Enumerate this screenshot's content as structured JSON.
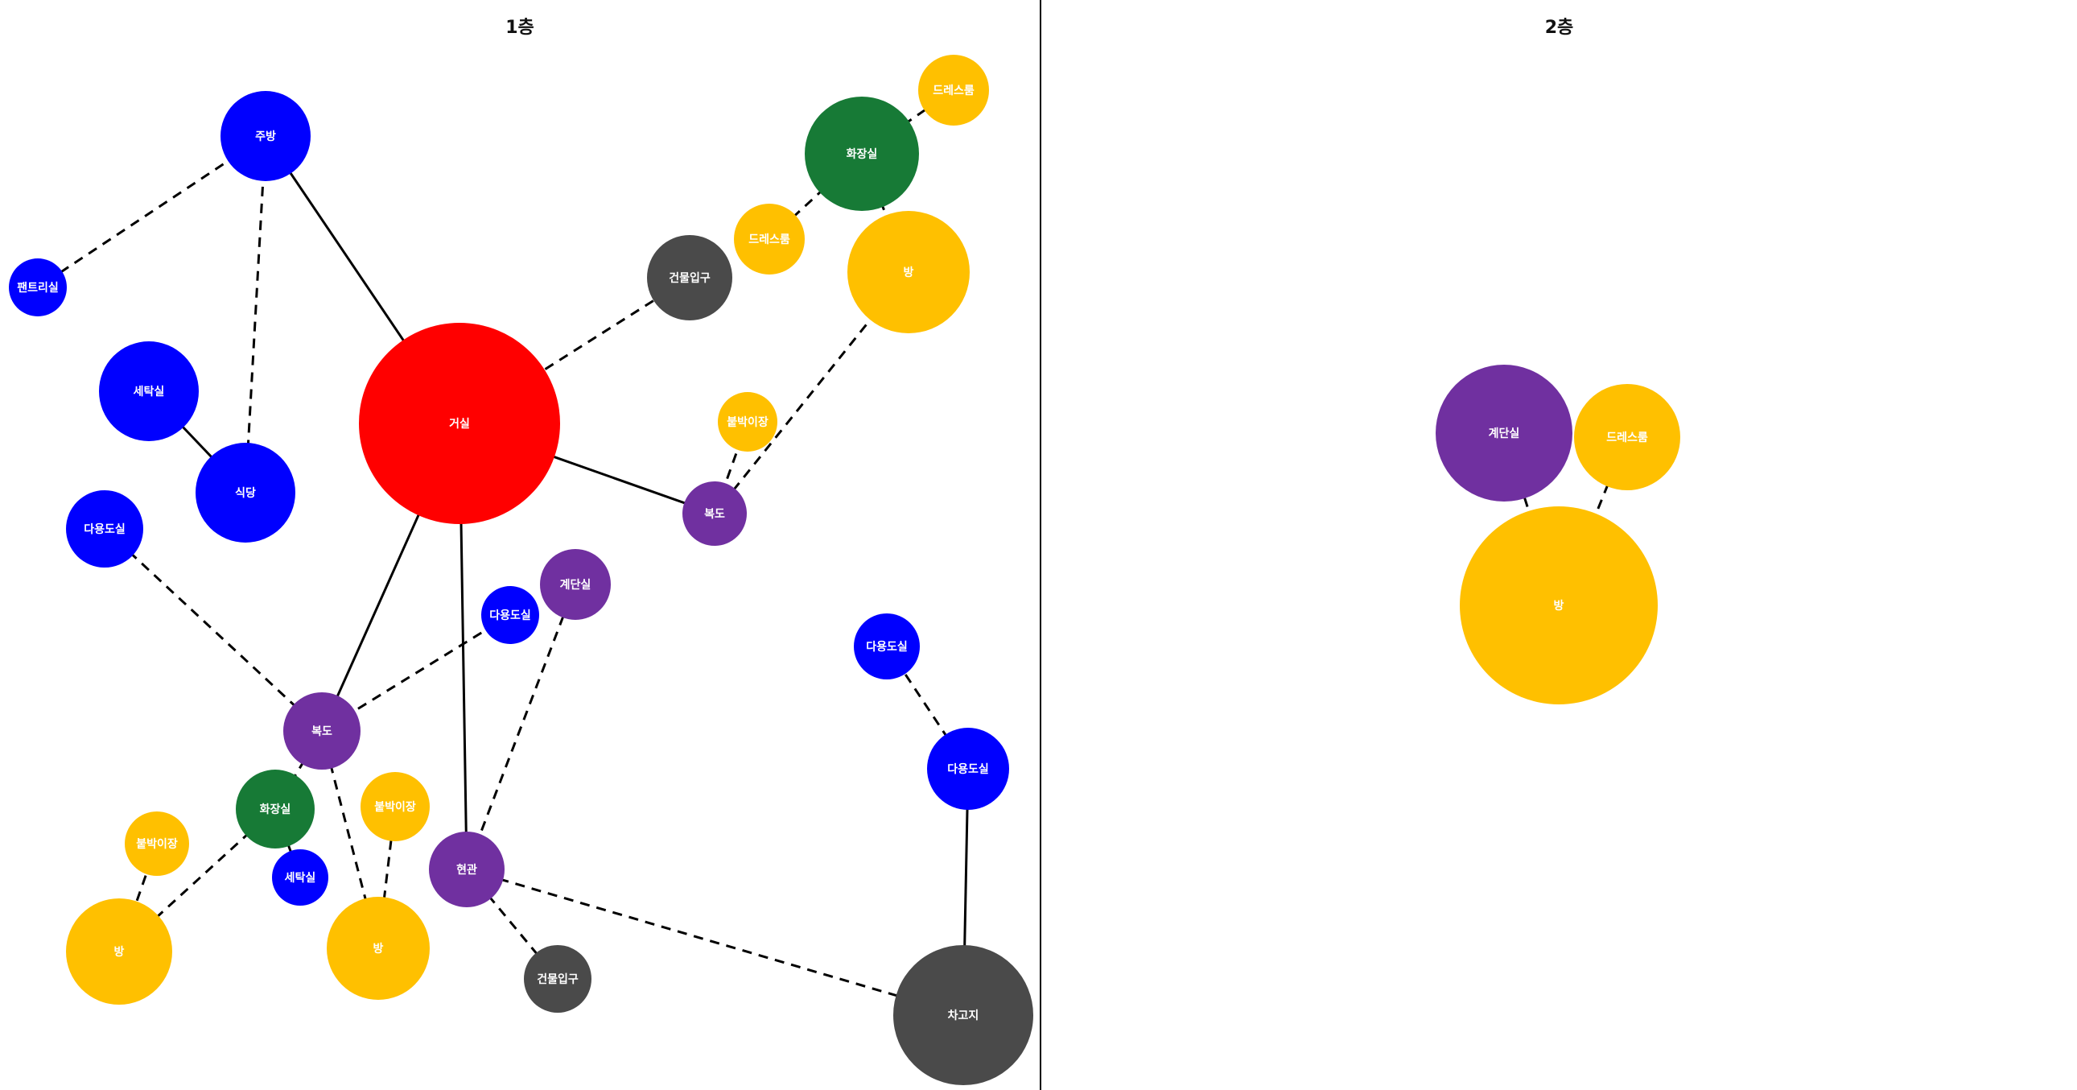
{
  "colors": {
    "living": "#ff0000",
    "service": "#0000ff",
    "circulation": "#7030a0",
    "bathroom": "#177a36",
    "room": "#ffc000",
    "entrance": "#4a4a4a"
  },
  "floors": [
    {
      "title": "1층",
      "nodes": [
        {
          "id": "f1-living",
          "label": "거실",
          "type": "living"
        },
        {
          "id": "f1-kitchen",
          "label": "주방",
          "type": "service"
        },
        {
          "id": "f1-pantry",
          "label": "팬트리실",
          "type": "service"
        },
        {
          "id": "f1-laundry",
          "label": "세탁실",
          "type": "service"
        },
        {
          "id": "f1-dining",
          "label": "식당",
          "type": "service"
        },
        {
          "id": "f1-multi-a",
          "label": "다용도실",
          "type": "service"
        },
        {
          "id": "f1-entry-a",
          "label": "건물입구",
          "type": "entrance"
        },
        {
          "id": "f1-bath-a",
          "label": "화장실",
          "type": "bathroom"
        },
        {
          "id": "f1-dress-a",
          "label": "드레스룸",
          "type": "room"
        },
        {
          "id": "f1-dress-b",
          "label": "드레스룸",
          "type": "room"
        },
        {
          "id": "f1-room-a",
          "label": "방",
          "type": "room"
        },
        {
          "id": "f1-closet-a",
          "label": "붙박이장",
          "type": "room"
        },
        {
          "id": "f1-hall-a",
          "label": "복도",
          "type": "circulation"
        },
        {
          "id": "f1-stairs",
          "label": "계단실",
          "type": "circulation"
        },
        {
          "id": "f1-multi-b",
          "label": "다용도실",
          "type": "service"
        },
        {
          "id": "f1-hall-b",
          "label": "복도",
          "type": "circulation"
        },
        {
          "id": "f1-multi-c",
          "label": "다용도실",
          "type": "service"
        },
        {
          "id": "f1-multi-d",
          "label": "다용도실",
          "type": "service"
        },
        {
          "id": "f1-bath-b",
          "label": "화장실",
          "type": "bathroom"
        },
        {
          "id": "f1-closet-b",
          "label": "붙박이장",
          "type": "room"
        },
        {
          "id": "f1-closet-c",
          "label": "붙박이장",
          "type": "room"
        },
        {
          "id": "f1-laundry-b",
          "label": "세탁실",
          "type": "service"
        },
        {
          "id": "f1-foyer",
          "label": "현관",
          "type": "circulation"
        },
        {
          "id": "f1-room-b",
          "label": "방",
          "type": "room"
        },
        {
          "id": "f1-room-c",
          "label": "방",
          "type": "room"
        },
        {
          "id": "f1-entry-b",
          "label": "건물입구",
          "type": "entrance"
        },
        {
          "id": "f1-garage",
          "label": "차고지",
          "type": "entrance"
        }
      ],
      "edges": [
        {
          "from": "f1-kitchen",
          "to": "f1-pantry",
          "style": "dashed"
        },
        {
          "from": "f1-kitchen",
          "to": "f1-dining",
          "style": "dashed"
        },
        {
          "from": "f1-kitchen",
          "to": "f1-living",
          "style": "solid"
        },
        {
          "from": "f1-laundry",
          "to": "f1-dining",
          "style": "solid"
        },
        {
          "from": "f1-living",
          "to": "f1-entry-a",
          "style": "dashed"
        },
        {
          "from": "f1-living",
          "to": "f1-hall-a",
          "style": "solid"
        },
        {
          "from": "f1-living",
          "to": "f1-hall-b",
          "style": "solid"
        },
        {
          "from": "f1-living",
          "to": "f1-foyer",
          "style": "solid"
        },
        {
          "from": "f1-bath-a",
          "to": "f1-dress-a",
          "style": "dashed"
        },
        {
          "from": "f1-bath-a",
          "to": "f1-dress-b",
          "style": "dashed"
        },
        {
          "from": "f1-bath-a",
          "to": "f1-room-a",
          "style": "dashed"
        },
        {
          "from": "f1-room-a",
          "to": "f1-hall-a",
          "style": "dashed"
        },
        {
          "from": "f1-closet-a",
          "to": "f1-hall-a",
          "style": "dashed"
        },
        {
          "from": "f1-multi-a",
          "to": "f1-hall-b",
          "style": "dashed"
        },
        {
          "from": "f1-multi-b",
          "to": "f1-hall-b",
          "style": "dashed"
        },
        {
          "from": "f1-stairs",
          "to": "f1-foyer",
          "style": "dashed"
        },
        {
          "from": "f1-hall-b",
          "to": "f1-bath-b",
          "style": "dashed"
        },
        {
          "from": "f1-hall-b",
          "to": "f1-room-c",
          "style": "dashed"
        },
        {
          "from": "f1-bath-b",
          "to": "f1-room-b",
          "style": "dashed"
        },
        {
          "from": "f1-bath-b",
          "to": "f1-laundry-b",
          "style": "solid"
        },
        {
          "from": "f1-closet-b",
          "to": "f1-room-b",
          "style": "dashed"
        },
        {
          "from": "f1-closet-c",
          "to": "f1-room-c",
          "style": "dashed"
        },
        {
          "from": "f1-foyer",
          "to": "f1-entry-b",
          "style": "dashed"
        },
        {
          "from": "f1-foyer",
          "to": "f1-garage",
          "style": "dashed"
        },
        {
          "from": "f1-multi-c",
          "to": "f1-multi-d",
          "style": "dashed"
        },
        {
          "from": "f1-multi-d",
          "to": "f1-garage",
          "style": "solid"
        }
      ]
    },
    {
      "title": "2층",
      "nodes": [
        {
          "id": "f2-stairs",
          "label": "계단실",
          "type": "circulation"
        },
        {
          "id": "f2-dress",
          "label": "드레스룸",
          "type": "room"
        },
        {
          "id": "f2-room",
          "label": "방",
          "type": "room"
        }
      ],
      "edges": [
        {
          "from": "f2-stairs",
          "to": "f2-room",
          "style": "dashed"
        },
        {
          "from": "f2-dress",
          "to": "f2-room",
          "style": "dashed"
        }
      ]
    }
  ]
}
